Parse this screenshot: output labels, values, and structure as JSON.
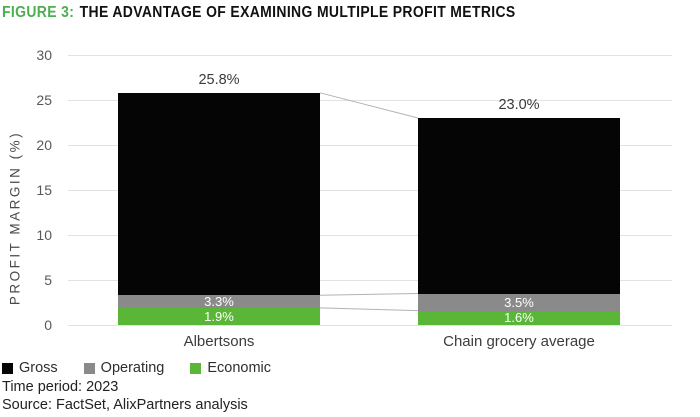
{
  "title": {
    "figure_label": "FIGURE 3:",
    "text": "THE ADVANTAGE OF EXAMINING MULTIPLE PROFIT METRICS",
    "accent_color": "#4caf50"
  },
  "chart_data": {
    "type": "bar",
    "variant": "overlay-grouped",
    "title": "FIGURE 3: THE ADVANTAGE OF EXAMINING MULTIPLE PROFIT METRICS",
    "categories": [
      "Albertsons",
      "Chain grocery average"
    ],
    "series": [
      {
        "name": "Gross",
        "color": "#050505",
        "values": [
          25.8,
          23.0
        ]
      },
      {
        "name": "Operating",
        "color": "#8a8a8a",
        "values": [
          3.3,
          3.5
        ]
      },
      {
        "name": "Economic",
        "color": "#5ab636",
        "values": [
          1.9,
          1.6
        ]
      }
    ],
    "value_label_suffix": "%",
    "ylabel": "PROFIT MARGIN (%)",
    "xlabel": "",
    "ylim": [
      0,
      30
    ],
    "yticks": [
      0,
      5,
      10,
      15,
      20,
      25,
      30
    ],
    "grid": true,
    "gridline_color": "#e2e2e2",
    "connector_color": "#b3b3b3",
    "connectors_between_bars": true,
    "legend_position": "bottom-left"
  },
  "footer": {
    "time_period": "Time period: 2023",
    "source": "Source: FactSet, AlixPartners analysis"
  }
}
